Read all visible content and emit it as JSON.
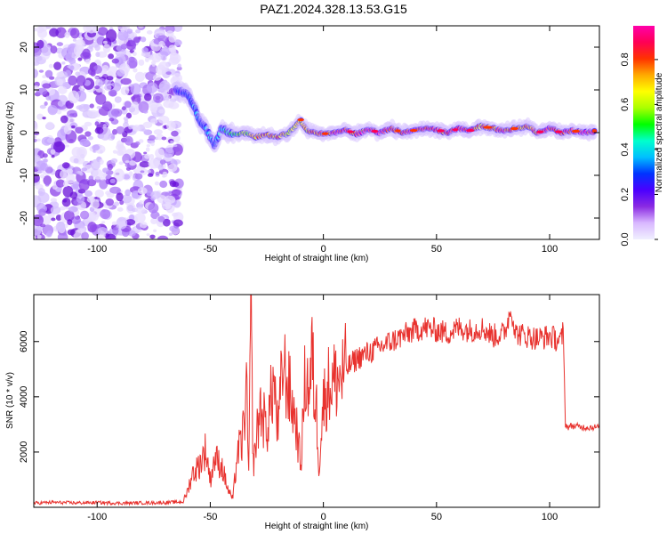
{
  "title": "PAZ1.2024.328.13.53.G15",
  "chart_data": [
    {
      "type": "heatmap",
      "xlabel": "Height of straight line (km)",
      "ylabel": "Frequency (Hz)",
      "xlim": [
        -128,
        122
      ],
      "ylim": [
        -25,
        25
      ],
      "xticks": [
        -100,
        -50,
        0,
        50,
        100
      ],
      "xtick_labels": [
        "-100",
        "-50",
        "0",
        "50",
        "100"
      ],
      "yticks": [
        -20,
        -10,
        0,
        10,
        20
      ],
      "ytick_labels": [
        "-20",
        "-10",
        "0",
        "10",
        "20"
      ],
      "noise_region": [
        -128,
        -65
      ],
      "ridge": {
        "x": [
          -65,
          -60,
          -57,
          -55,
          -52,
          -50,
          -48,
          -45,
          -40,
          -35,
          -30,
          -25,
          -20,
          -15,
          -12,
          -10,
          -8,
          -5,
          0,
          5,
          10,
          15,
          20,
          25,
          30,
          35,
          40,
          45,
          50,
          55,
          60,
          65,
          70,
          75,
          80,
          85,
          90,
          95,
          100,
          105,
          110,
          115,
          120
        ],
        "y": [
          10,
          9,
          6,
          3,
          1,
          -1,
          -3,
          1,
          -0.5,
          0,
          -1,
          -0.5,
          -1,
          0,
          1.5,
          3,
          1,
          0,
          -0.3,
          0,
          0.5,
          -0.3,
          0.7,
          0,
          1,
          0,
          0.5,
          1,
          0.7,
          0,
          1,
          0.5,
          1.5,
          1,
          0.5,
          1,
          1.5,
          0,
          1,
          0,
          0.5,
          0,
          0.2
        ],
        "amplitude": [
          0.25,
          0.3,
          0.35,
          0.3,
          0.35,
          0.4,
          0.3,
          0.45,
          0.5,
          0.55,
          0.7,
          0.75,
          0.8,
          0.65,
          0.7,
          0.6,
          0.7,
          0.75,
          0.85,
          0.9,
          0.9,
          0.85,
          0.9,
          0.95,
          0.85,
          0.9,
          0.95,
          0.9,
          0.85,
          0.9,
          0.95,
          0.9,
          0.75,
          0.8,
          0.85,
          0.8,
          0.75,
          0.85,
          0.9,
          0.85,
          0.9,
          0.95,
          0.9
        ]
      },
      "colorbar": {
        "label": "Normalized spectral amplitude",
        "range": [
          0,
          0.95
        ],
        "ticks": [
          0.0,
          0.2,
          0.4,
          0.6,
          0.8
        ],
        "tick_labels": [
          "0.0",
          "0.2",
          "0.4",
          "0.6",
          "0.8"
        ],
        "colormap": [
          "#f0f0ff",
          "#d9b8ff",
          "#8a2be2",
          "#4b00ff",
          "#0033ff",
          "#00bfff",
          "#00ffcc",
          "#00ff00",
          "#aaff00",
          "#ffff00",
          "#ffaa00",
          "#ff3300",
          "#ff0055",
          "#ff00aa"
        ]
      }
    },
    {
      "type": "line",
      "xlabel": "Height of straight line (km)",
      "ylabel": "SNR (10 * v/v)",
      "xlim": [
        -128,
        122
      ],
      "ylim": [
        0,
        7700
      ],
      "xticks": [
        -100,
        -50,
        0,
        50,
        100
      ],
      "xtick_labels": [
        "-100",
        "-50",
        "0",
        "50",
        "100"
      ],
      "yticks": [
        2000,
        4000,
        6000
      ],
      "ytick_labels": [
        "2000",
        "4000",
        "6000"
      ],
      "color": "#e8322e",
      "series": [
        {
          "x": [
            -128,
            -120,
            -110,
            -100,
            -90,
            -80,
            -70,
            -62,
            -60,
            -58,
            -55,
            -52,
            -50,
            -48,
            -45,
            -42,
            -40,
            -38,
            -36,
            -34,
            -33,
            -32,
            -31,
            -30,
            -28,
            -25,
            -22,
            -20,
            -18,
            -15,
            -12,
            -10,
            -8,
            -6,
            -5,
            -4,
            -3,
            -2,
            0,
            2,
            5,
            8,
            10,
            15,
            20,
            25,
            30,
            35,
            40,
            45,
            50,
            55,
            60,
            65,
            70,
            75,
            80,
            83,
            85,
            90,
            95,
            100,
            105,
            106,
            107,
            108,
            110,
            115,
            122
          ],
          "y": [
            150,
            180,
            160,
            170,
            150,
            160,
            170,
            200,
            600,
            1200,
            1500,
            2100,
            1000,
            1800,
            1500,
            600,
            300,
            2000,
            2300,
            4200,
            1200,
            7200,
            1500,
            2200,
            3600,
            2800,
            4600,
            2700,
            5200,
            4200,
            3000,
            1500,
            4800,
            4200,
            5600,
            4000,
            3500,
            1500,
            3800,
            4400,
            4600,
            4700,
            5000,
            5400,
            5600,
            5800,
            6000,
            6200,
            6400,
            6500,
            6400,
            6300,
            6500,
            6400,
            6500,
            6200,
            6300,
            7200,
            6300,
            6200,
            6100,
            6200,
            6000,
            6400,
            3000,
            2900,
            2950,
            2900,
            2900
          ]
        }
      ]
    }
  ]
}
